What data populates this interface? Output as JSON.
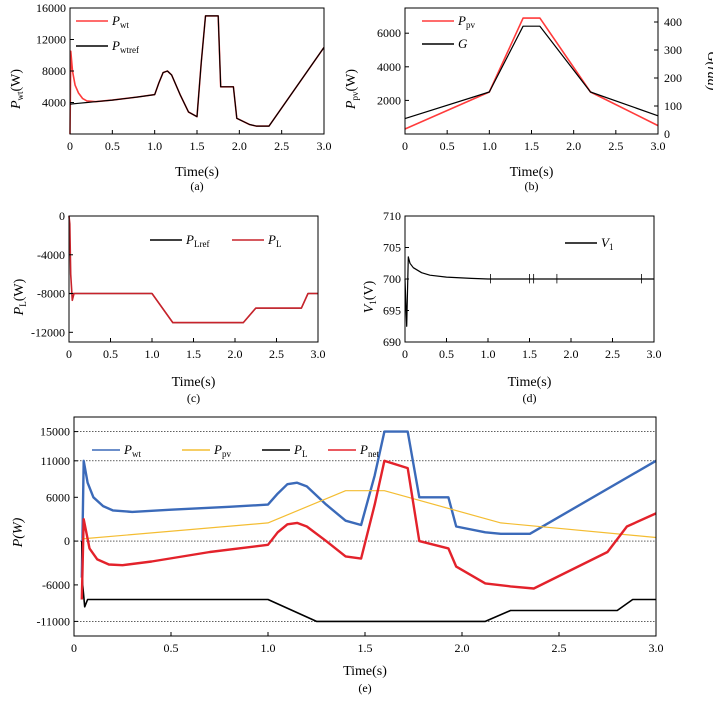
{
  "colors": {
    "pwt": "#3b6ab9",
    "ppv": "#f4bd32",
    "pl": "#000000",
    "pnet": "#e3222b",
    "red": "#ff3b3b",
    "black": "#000000"
  },
  "chart_data": [
    {
      "id": "a",
      "type": "line",
      "caption": "(a)",
      "xlabel": "Time(s)",
      "ylabel": "P_wt(W)",
      "ylabel_main": "P",
      "ylabel_sub": "wt",
      "ylabel_unit": "(W)",
      "xlim": [
        0,
        3
      ],
      "ylim": [
        0,
        16000
      ],
      "xticks": [
        "0",
        "0.5",
        "1.0",
        "1.5",
        "2.0",
        "2.5",
        "3.0"
      ],
      "yticks": [
        "4000",
        "8000",
        "12000",
        "16000"
      ],
      "series": [
        {
          "name": "P_wt",
          "legend_main": "P",
          "legend_sub": "wt",
          "color": "#ff3b3b",
          "x": [
            0,
            0.01,
            0.03,
            0.06,
            0.1,
            0.15,
            0.2,
            0.3,
            0.5,
            0.8,
            1.0,
            1.05,
            1.1,
            1.15,
            1.2,
            1.3,
            1.4,
            1.5,
            1.55,
            1.6,
            1.75,
            1.78,
            1.93,
            1.97,
            2.12,
            2.2,
            2.35,
            3.0
          ],
          "y": [
            0,
            10500,
            8000,
            6200,
            5200,
            4500,
            4200,
            4100,
            4300,
            4700,
            5000,
            6500,
            7800,
            8000,
            7500,
            5000,
            2800,
            2200,
            9000,
            15000,
            15000,
            6000,
            6000,
            2000,
            1200,
            1000,
            1000,
            11000
          ]
        },
        {
          "name": "P_wtref",
          "legend_main": "P",
          "legend_sub": "wtref",
          "color": "#000000",
          "x": [
            0,
            0.1,
            0.2,
            0.3,
            0.5,
            0.8,
            1.0,
            1.05,
            1.1,
            1.15,
            1.2,
            1.3,
            1.4,
            1.5,
            1.55,
            1.6,
            1.75,
            1.78,
            1.93,
            1.97,
            2.12,
            2.2,
            2.35,
            3.0
          ],
          "y": [
            3800,
            3900,
            4000,
            4100,
            4300,
            4700,
            5000,
            6500,
            7800,
            8000,
            7500,
            5000,
            2800,
            2200,
            9000,
            15000,
            15000,
            6000,
            6000,
            2000,
            1200,
            1000,
            1000,
            11000
          ]
        }
      ]
    },
    {
      "id": "b",
      "type": "line",
      "caption": "(b)",
      "xlabel": "Time(s)",
      "ylabel": "P_pv(W)",
      "ylabel2": "G(rad)",
      "ylabel_main": "P",
      "ylabel_sub": "pv",
      "ylabel_unit": "(W)",
      "xlim": [
        0,
        3
      ],
      "ylim": [
        0,
        7500
      ],
      "y2lim": [
        0,
        450
      ],
      "xticks": [
        "0",
        "0.5",
        "1.0",
        "1.5",
        "2.0",
        "2.5",
        "3.0"
      ],
      "yticks": [
        "2000",
        "4000",
        "6000"
      ],
      "y2ticks": [
        "0",
        "100",
        "200",
        "300",
        "400"
      ],
      "series": [
        {
          "name": "P_pv",
          "legend_main": "P",
          "legend_sub": "pv",
          "color": "#ff3b3b",
          "axis": "left",
          "x": [
            0,
            1.0,
            1.4,
            1.6,
            2.2,
            3.0
          ],
          "y": [
            300,
            2500,
            6900,
            6900,
            2500,
            500
          ]
        },
        {
          "name": "G",
          "legend_main": "G",
          "legend_sub": "",
          "color": "#000000",
          "axis": "right",
          "x": [
            0,
            1.0,
            1.4,
            1.6,
            2.2,
            3.0
          ],
          "y": [
            55,
            150,
            385,
            385,
            150,
            65
          ]
        }
      ]
    },
    {
      "id": "c",
      "type": "line",
      "caption": "(c)",
      "xlabel": "Time(s)",
      "ylabel": "P_L(W)",
      "ylabel_main": "P",
      "ylabel_sub": "L",
      "ylabel_unit": "(W)",
      "xlim": [
        0,
        3
      ],
      "ylim": [
        -13000,
        0
      ],
      "xticks": [
        "0",
        "0.5",
        "1.0",
        "1.5",
        "2.0",
        "2.5",
        "3.0"
      ],
      "yticks": [
        "0",
        "-4000",
        "-8000",
        "-12000"
      ],
      "series": [
        {
          "name": "P_Lref",
          "legend_main": "P",
          "legend_sub": "Lref",
          "color": "#000000",
          "x": [
            0,
            1.0,
            1.25,
            2.1,
            2.25,
            2.8,
            2.88,
            3.0
          ],
          "y": [
            -8000,
            -8000,
            -11000,
            -11000,
            -9500,
            -9500,
            -8000,
            -8000
          ]
        },
        {
          "name": "P_L",
          "legend_main": "P",
          "legend_sub": "L",
          "color": "#c8232b",
          "x": [
            0,
            0.01,
            0.02,
            0.04,
            0.06,
            1.0,
            1.25,
            2.1,
            2.25,
            2.8,
            2.88,
            3.0
          ],
          "y": [
            0,
            -800,
            -6000,
            -8700,
            -8000,
            -8000,
            -11000,
            -11000,
            -9500,
            -9500,
            -8000,
            -8000
          ]
        }
      ]
    },
    {
      "id": "d",
      "type": "line",
      "caption": "(d)",
      "xlabel": "Time(s)",
      "ylabel": "V_1(V)",
      "ylabel_main": "V",
      "ylabel_sub": "1",
      "ylabel_unit": "(V)",
      "xlim": [
        0,
        3
      ],
      "ylim": [
        690,
        710
      ],
      "xticks": [
        "0",
        "0.5",
        "1.0",
        "1.5",
        "2.0",
        "2.5",
        "3.0"
      ],
      "yticks": [
        "690",
        "695",
        "700",
        "705",
        "710"
      ],
      "series": [
        {
          "name": "V_1",
          "legend_main": "V",
          "legend_sub": "1",
          "color": "#000000",
          "x": [
            0,
            0.02,
            0.04,
            0.06,
            0.1,
            0.2,
            0.3,
            0.5,
            0.8,
            1.0,
            1.5,
            2.0,
            2.5,
            3.0
          ],
          "y": [
            700,
            692.5,
            703.5,
            702.5,
            701.8,
            701.0,
            700.6,
            700.3,
            700.1,
            700.0,
            700.0,
            700.0,
            700.0,
            700.0
          ]
        }
      ]
    },
    {
      "id": "e",
      "type": "line",
      "caption": "(e)",
      "xlabel": "Time(s)",
      "ylabel": "P(W)",
      "xlim": [
        0,
        3
      ],
      "ylim": [
        -13000,
        17000
      ],
      "xticks": [
        "0",
        "0.5",
        "1.0",
        "1.5",
        "2.0",
        "2.5",
        "3.0"
      ],
      "yticks": [
        "15000",
        "11000",
        "6000",
        "0",
        "-6000",
        "-11000"
      ],
      "grid_y": [
        15000,
        11000,
        0,
        -11000
      ],
      "series": [
        {
          "name": "P_wt",
          "legend_main": "P",
          "legend_sub": "wt",
          "color": "#3b6ab9",
          "x": [
            0.04,
            0.05,
            0.07,
            0.1,
            0.15,
            0.2,
            0.3,
            0.5,
            0.8,
            1.0,
            1.05,
            1.1,
            1.15,
            1.2,
            1.3,
            1.4,
            1.48,
            1.55,
            1.6,
            1.72,
            1.78,
            1.93,
            1.97,
            2.12,
            2.2,
            2.35,
            3.0
          ],
          "y": [
            -5000,
            11000,
            8000,
            6000,
            4800,
            4200,
            4000,
            4300,
            4700,
            5000,
            6500,
            7800,
            8000,
            7500,
            5000,
            2800,
            2200,
            9000,
            15000,
            15000,
            6000,
            6000,
            2000,
            1200,
            1000,
            1000,
            11000
          ]
        },
        {
          "name": "P_pv",
          "legend_main": "P",
          "legend_sub": "pv",
          "color": "#f4bd32",
          "x": [
            0.04,
            1.0,
            1.4,
            1.6,
            2.2,
            3.0
          ],
          "y": [
            300,
            2500,
            6900,
            6900,
            2500,
            500
          ]
        },
        {
          "name": "P_L",
          "legend_main": "P",
          "legend_sub": "L",
          "color": "#000000",
          "x": [
            0.04,
            0.045,
            0.055,
            0.07,
            1.0,
            1.25,
            2.12,
            2.25,
            2.8,
            2.88,
            3.0
          ],
          "y": [
            0,
            -6000,
            -9000,
            -8000,
            -8000,
            -11000,
            -11000,
            -9500,
            -9500,
            -8000,
            -8000
          ]
        },
        {
          "name": "P_net",
          "legend_main": "P",
          "legend_sub": "net",
          "color": "#e3222b",
          "x": [
            0.04,
            0.05,
            0.08,
            0.12,
            0.18,
            0.25,
            0.4,
            0.7,
            1.0,
            1.05,
            1.1,
            1.15,
            1.2,
            1.3,
            1.4,
            1.48,
            1.55,
            1.6,
            1.72,
            1.78,
            1.93,
            1.97,
            2.12,
            2.25,
            2.37,
            2.75,
            2.85,
            3.0
          ],
          "y": [
            -8000,
            3000,
            -1000,
            -2500,
            -3200,
            -3300,
            -2800,
            -1500,
            -500,
            1200,
            2300,
            2500,
            2000,
            0,
            -2100,
            -2400,
            5000,
            11000,
            10000,
            0,
            -1000,
            -3500,
            -5800,
            -6200,
            -6500,
            -1500,
            2000,
            3800
          ]
        }
      ]
    }
  ]
}
